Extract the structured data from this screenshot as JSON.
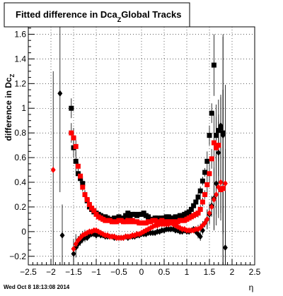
{
  "chart_data": {
    "type": "scatter",
    "title": "Fitted difference in Dca_Z Global Tracks",
    "title_parts": {
      "main": "Fitted difference in Dca",
      "subscript": "Z",
      "tail": "Global Tracks"
    },
    "ylabel": "difference in Dca_Z",
    "ylabel_parts": {
      "main": "difference in Dc",
      "subscript": "Z"
    },
    "xlabel": "η",
    "footer": "Wed Oct  8 18:13:08 2014",
    "xlim": [
      -2.5,
      2.5
    ],
    "ylim": [
      -0.27,
      1.66
    ],
    "xticks": [
      -2.5,
      -2,
      -1.5,
      -1,
      -0.5,
      0,
      0.5,
      1,
      1.5,
      2,
      2.5
    ],
    "xtick_labels": [
      "−2.5",
      "−2",
      "−1.5",
      "−1",
      "−0.5",
      "0",
      "0.5",
      "1",
      "1.5",
      "2",
      "2.5"
    ],
    "yticks": [
      -0.2,
      0,
      0.2,
      0.4,
      0.6,
      0.8,
      1,
      1.2,
      1.4,
      1.6
    ],
    "ytick_labels": [
      "−0.2",
      "0",
      "0.2",
      "0.4",
      "0.6",
      "0.8",
      "1",
      "1.2",
      "1.4",
      "1.6"
    ],
    "grid": true,
    "series": [
      {
        "marker": "square",
        "color": "#000000",
        "x": [
          -1.55,
          -1.5,
          -1.45,
          -1.4,
          -1.35,
          -1.3,
          -1.25,
          -1.2,
          -1.15,
          -1.1,
          -1.05,
          -1.0,
          -0.95,
          -0.9,
          -0.85,
          -0.8,
          -0.75,
          -0.7,
          -0.65,
          -0.6,
          -0.55,
          -0.5,
          -0.45,
          -0.4,
          -0.35,
          -0.3,
          -0.25,
          -0.2,
          -0.15,
          -0.1,
          -0.05,
          0.0,
          0.05,
          0.1,
          0.15,
          0.2,
          0.25,
          0.3,
          0.35,
          0.4,
          0.45,
          0.5,
          0.55,
          0.6,
          0.65,
          0.7,
          0.75,
          0.8,
          0.85,
          0.9,
          0.95,
          1.0,
          1.05,
          1.1,
          1.15,
          1.2,
          1.25,
          1.3,
          1.35,
          1.4,
          1.45,
          1.5,
          1.55,
          1.6,
          1.65,
          1.7,
          1.75,
          1.8
        ],
        "y": [
          1.0,
          0.68,
          0.57,
          0.47,
          0.43,
          0.39,
          0.3,
          0.25,
          0.2,
          0.18,
          0.16,
          0.15,
          0.14,
          0.13,
          0.12,
          0.12,
          0.11,
          0.1,
          0.1,
          0.11,
          0.1,
          0.12,
          0.1,
          0.11,
          0.13,
          0.15,
          0.12,
          0.14,
          0.14,
          0.13,
          0.14,
          0.14,
          0.15,
          0.13,
          0.12,
          0.1,
          0.1,
          0.11,
          0.11,
          0.1,
          0.11,
          0.11,
          0.12,
          0.12,
          0.11,
          0.11,
          0.12,
          0.12,
          0.13,
          0.13,
          0.14,
          0.15,
          0.16,
          0.18,
          0.21,
          0.24,
          0.28,
          0.33,
          0.41,
          0.48,
          0.57,
          0.78,
          0.96,
          1.35,
          0.78,
          0.82,
          0.84,
          0.8
        ]
      },
      {
        "marker": "diamond",
        "color": "#000000",
        "x": [
          -1.8,
          -1.75,
          -1.5,
          -1.45,
          -1.4,
          -1.35,
          -1.3,
          -1.25,
          -1.2,
          -1.15,
          -1.1,
          -1.05,
          -1.0,
          -0.95,
          -0.9,
          -0.85,
          -0.8,
          -0.75,
          -0.7,
          -0.65,
          -0.6,
          -0.55,
          -0.5,
          -0.45,
          -0.4,
          -0.35,
          -0.3,
          -0.25,
          -0.2,
          -0.15,
          -0.1,
          -0.05,
          0.0,
          0.05,
          0.1,
          0.15,
          0.2,
          0.25,
          0.3,
          0.35,
          0.4,
          0.45,
          0.5,
          0.55,
          0.6,
          0.65,
          0.7,
          0.75,
          0.8,
          0.85,
          0.9,
          0.95,
          1.0,
          1.05,
          1.1,
          1.15,
          1.2,
          1.25,
          1.3,
          1.35,
          1.4,
          1.45,
          1.5,
          1.55,
          1.6,
          1.65,
          1.7,
          1.75,
          1.8,
          1.85
        ],
        "y": [
          1.12,
          -0.03,
          -0.18,
          -0.13,
          -0.1,
          -0.08,
          -0.06,
          -0.05,
          -0.05,
          -0.03,
          -0.02,
          -0.02,
          -0.03,
          -0.02,
          -0.03,
          -0.03,
          -0.04,
          -0.04,
          -0.04,
          -0.04,
          -0.05,
          -0.05,
          -0.05,
          -0.05,
          -0.05,
          -0.04,
          -0.05,
          -0.04,
          -0.04,
          -0.04,
          -0.03,
          -0.03,
          -0.02,
          -0.02,
          -0.02,
          -0.01,
          -0.01,
          -0.01,
          -0.01,
          0.0,
          0.0,
          0.01,
          0.01,
          0.02,
          0.02,
          0.02,
          0.02,
          0.01,
          0.01,
          0.0,
          0.0,
          0.01,
          0.0,
          0.0,
          0.01,
          0.02,
          0.0,
          -0.02,
          -0.04,
          0.01,
          0.07,
          0.1,
          0.14,
          0.21,
          0.27,
          0.39,
          0.64,
          0.86,
          0.78,
          -0.13
        ]
      },
      {
        "marker": "square",
        "color": "#ff0000",
        "x": [
          -1.55,
          -1.5,
          -1.45,
          -1.4,
          -1.35,
          -1.3,
          -1.25,
          -1.2,
          -1.15,
          -1.1,
          -1.05,
          -1.0,
          -0.95,
          -0.9,
          -0.85,
          -0.8,
          -0.75,
          -0.7,
          -0.65,
          -0.6,
          -0.55,
          -0.5,
          -0.45,
          -0.4,
          -0.35,
          -0.3,
          -0.25,
          -0.2,
          -0.15,
          -0.1,
          -0.05,
          0.0,
          0.05,
          0.1,
          0.15,
          0.2,
          0.25,
          0.3,
          0.35,
          0.4,
          0.45,
          0.5,
          0.55,
          0.6,
          0.65,
          0.7,
          0.75,
          0.8,
          0.85,
          0.9,
          0.95,
          1.0,
          1.05,
          1.1,
          1.15,
          1.2,
          1.25,
          1.3,
          1.35,
          1.4,
          1.45,
          1.5,
          1.55,
          1.6,
          1.65,
          1.7,
          1.75,
          1.8
        ],
        "y": [
          0.8,
          0.76,
          0.69,
          0.53,
          0.45,
          0.36,
          0.3,
          0.26,
          0.22,
          0.19,
          0.17,
          0.14,
          0.12,
          0.11,
          0.1,
          0.09,
          0.09,
          0.09,
          0.08,
          0.08,
          0.08,
          0.09,
          0.09,
          0.08,
          0.08,
          0.09,
          0.08,
          0.09,
          0.08,
          0.08,
          0.07,
          0.07,
          0.07,
          0.07,
          0.08,
          0.08,
          0.09,
          0.09,
          0.08,
          0.08,
          0.09,
          0.08,
          0.08,
          0.08,
          0.08,
          0.08,
          0.08,
          0.08,
          0.09,
          0.09,
          0.09,
          0.1,
          0.11,
          0.12,
          0.13,
          0.14,
          0.15,
          0.18,
          0.24,
          0.3,
          0.38,
          0.47,
          0.59,
          0.72,
          0.68,
          0.7,
          0.34,
          0.35
        ]
      },
      {
        "marker": "diamond",
        "color": "#ff0000",
        "x": [
          -1.95,
          -1.5,
          -1.45,
          -1.4,
          -1.35,
          -1.3,
          -1.25,
          -1.2,
          -1.15,
          -1.1,
          -1.05,
          -1.0,
          -0.95,
          -0.9,
          -0.85,
          -0.8,
          -0.75,
          -0.7,
          -0.65,
          -0.6,
          -0.55,
          -0.5,
          -0.45,
          -0.4,
          -0.35,
          -0.3,
          -0.25,
          -0.2,
          -0.15,
          -0.1,
          -0.05,
          0.0,
          0.05,
          0.1,
          0.15,
          0.2,
          0.25,
          0.3,
          0.35,
          0.4,
          0.45,
          0.5,
          0.55,
          0.6,
          0.65,
          0.7,
          0.75,
          0.8,
          0.85,
          0.9,
          0.95,
          1.0,
          1.05,
          1.1,
          1.15,
          1.2,
          1.25,
          1.3,
          1.35,
          1.4,
          1.45,
          1.5,
          1.55,
          1.6,
          1.65,
          1.7,
          1.75,
          1.8,
          1.85
        ],
        "y": [
          0.5,
          -0.14,
          -0.1,
          -0.07,
          -0.05,
          -0.03,
          -0.02,
          -0.01,
          0.0,
          0.0,
          0.01,
          0.01,
          0.0,
          -0.01,
          -0.02,
          -0.03,
          -0.03,
          -0.04,
          -0.04,
          -0.04,
          -0.05,
          -0.05,
          -0.05,
          -0.05,
          -0.04,
          -0.04,
          -0.04,
          -0.03,
          -0.03,
          -0.02,
          -0.02,
          -0.01,
          0.0,
          0.01,
          0.02,
          0.03,
          0.04,
          0.05,
          0.05,
          0.06,
          0.06,
          0.06,
          0.06,
          0.06,
          0.07,
          0.06,
          0.05,
          0.04,
          0.03,
          0.02,
          0.02,
          0.01,
          0.01,
          0.01,
          0.01,
          0.02,
          0.02,
          0.03,
          0.05,
          0.07,
          0.1,
          0.15,
          0.2,
          0.26,
          0.3,
          0.36,
          0.4,
          0.35,
          0.39
        ]
      }
    ]
  }
}
